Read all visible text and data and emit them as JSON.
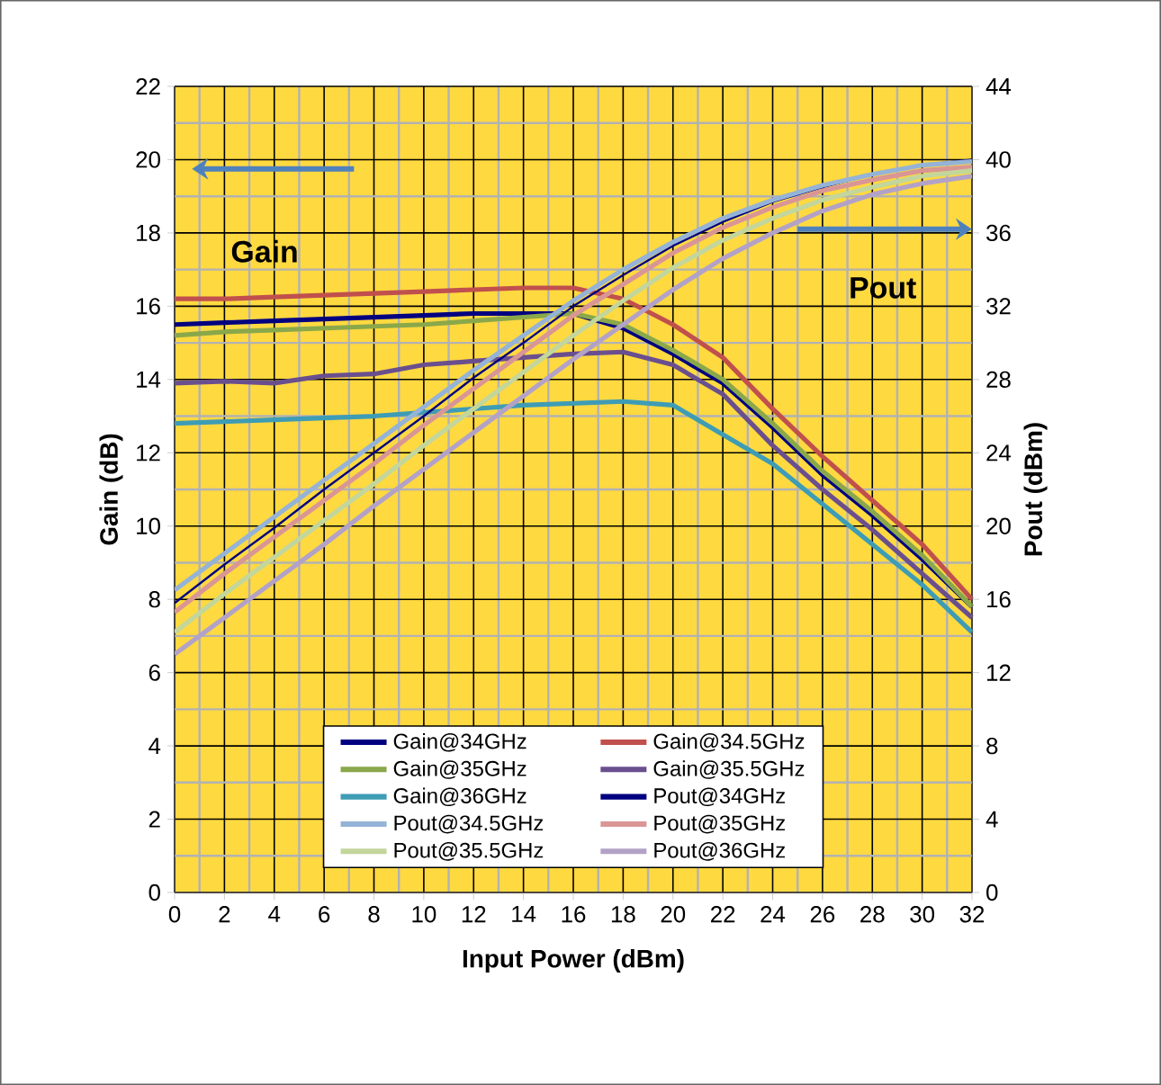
{
  "chart_data": {
    "type": "line",
    "xlabel": "Input Power (dBm)",
    "ylabel": "Gain (dB)",
    "y2label": "Pout (dBm)",
    "x": [
      0,
      2,
      4,
      6,
      8,
      10,
      12,
      14,
      16,
      18,
      20,
      22,
      24,
      26,
      28,
      30,
      32
    ],
    "xlim": [
      0,
      32
    ],
    "xticks": [
      0,
      2,
      4,
      6,
      8,
      10,
      12,
      14,
      16,
      18,
      20,
      22,
      24,
      26,
      28,
      30,
      32
    ],
    "ylim": [
      0,
      22
    ],
    "yticks": [
      0,
      2,
      4,
      6,
      8,
      10,
      12,
      14,
      16,
      18,
      20,
      22
    ],
    "y2lim": [
      0,
      44
    ],
    "y2ticks": [
      0,
      4,
      8,
      12,
      16,
      20,
      24,
      28,
      32,
      36,
      40,
      44
    ],
    "grid": true,
    "legend": "bottom",
    "marker": "none",
    "line_style": "solid",
    "annotations": [
      "Gain",
      "Pout"
    ],
    "series": [
      {
        "name": "Gain@34GHz",
        "color": "#000080",
        "values": [
          15.5,
          15.55,
          15.6,
          15.65,
          15.7,
          15.75,
          15.8,
          15.8,
          15.8,
          15.4,
          14.7,
          13.9,
          12.7,
          11.4,
          10.3,
          9.1,
          7.8
        ]
      },
      {
        "name": "Gain@34.5GHz",
        "color": "#c0504d",
        "values": [
          16.2,
          16.2,
          16.25,
          16.3,
          16.35,
          16.4,
          16.45,
          16.5,
          16.5,
          16.2,
          15.5,
          14.6,
          13.2,
          11.9,
          10.7,
          9.5,
          8.0
        ]
      },
      {
        "name": "Gain@35GHz",
        "color": "#8aa84a",
        "values": [
          15.2,
          15.3,
          15.35,
          15.4,
          15.45,
          15.5,
          15.6,
          15.7,
          15.8,
          15.5,
          14.8,
          14.0,
          12.8,
          11.5,
          10.4,
          9.2,
          7.8
        ]
      },
      {
        "name": "Gain@35.5GHz",
        "color": "#6a4f8f",
        "values": [
          13.9,
          13.95,
          13.9,
          14.1,
          14.15,
          14.4,
          14.5,
          14.6,
          14.7,
          14.75,
          14.4,
          13.6,
          12.2,
          11.0,
          9.9,
          8.7,
          7.5
        ]
      },
      {
        "name": "Gain@36GHz",
        "color": "#3e9cb5",
        "values": [
          12.8,
          12.85,
          12.9,
          12.95,
          13.0,
          13.1,
          13.2,
          13.3,
          13.35,
          13.4,
          13.3,
          12.5,
          11.7,
          10.6,
          9.5,
          8.4,
          7.1
        ]
      },
      {
        "name": "Pout@34GHz",
        "color": "#000080",
        "axis": "y2",
        "values": [
          15.8,
          17.9,
          19.9,
          22.0,
          24.0,
          26.0,
          28.1,
          30.0,
          32.0,
          33.7,
          35.3,
          36.6,
          37.7,
          38.5,
          39.2,
          39.7,
          40.0
        ]
      },
      {
        "name": "Pout@34.5GHz",
        "color": "#95b3d7",
        "axis": "y2",
        "values": [
          16.5,
          18.5,
          20.5,
          22.5,
          24.5,
          26.5,
          28.5,
          30.4,
          32.3,
          34.0,
          35.5,
          36.8,
          37.8,
          38.6,
          39.2,
          39.7,
          39.9
        ]
      },
      {
        "name": "Pout@35GHz",
        "color": "#d99694",
        "axis": "y2",
        "values": [
          15.3,
          17.4,
          19.4,
          21.4,
          23.4,
          25.5,
          27.5,
          29.5,
          31.5,
          33.2,
          34.9,
          36.3,
          37.4,
          38.3,
          38.9,
          39.4,
          39.6
        ]
      },
      {
        "name": "Pout@35.5GHz",
        "color": "#c3d69b",
        "axis": "y2",
        "values": [
          14.2,
          16.3,
          18.3,
          20.3,
          22.3,
          24.4,
          26.4,
          28.4,
          30.4,
          32.3,
          34.1,
          35.6,
          36.8,
          37.8,
          38.5,
          39.1,
          39.4
        ]
      },
      {
        "name": "Pout@36GHz",
        "color": "#b3a2c7",
        "axis": "y2",
        "values": [
          13.0,
          15.0,
          17.0,
          19.0,
          21.1,
          23.1,
          25.1,
          27.1,
          29.1,
          31.0,
          32.9,
          34.6,
          36.0,
          37.2,
          38.1,
          38.7,
          39.1
        ]
      }
    ]
  }
}
